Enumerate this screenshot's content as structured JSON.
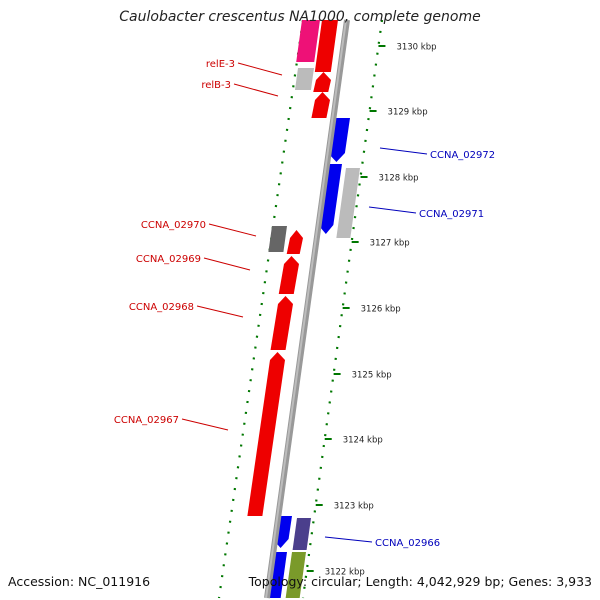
{
  "title": "Caulobacter crescentus NA1000, complete genome",
  "accession": "Accession: NC_011916",
  "summary": "Topology: circular; Length: 4,042,929 bp; Genes: 3,933",
  "colors": {
    "red": "#ee0000",
    "blue": "#0000ee",
    "magenta": "#ee1177",
    "gray": "#bbbbbb",
    "darkgray": "#666666",
    "purple": "#4b3f8c",
    "olive": "#7a9a2a",
    "tick": "#007700",
    "backbone": "#888888",
    "label_red": "#cc0000",
    "label_blue": "#0000bb"
  },
  "ticks": [
    "3130 kbp",
    "3129 kbp",
    "3128 kbp",
    "3127 kbp",
    "3126 kbp",
    "3125 kbp",
    "3124 kbp",
    "3123 kbp",
    "3122 kbp"
  ],
  "genes_left": [
    {
      "label": "relE-3",
      "color": "red"
    },
    {
      "label": "relB-3",
      "color": "red"
    },
    {
      "label": "CCNA_02970",
      "color": "red"
    },
    {
      "label": "CCNA_02969",
      "color": "red"
    },
    {
      "label": "CCNA_02968",
      "color": "red"
    },
    {
      "label": "CCNA_02967",
      "color": "red"
    }
  ],
  "genes_right": [
    {
      "label": "CCNA_02972",
      "color": "blue"
    },
    {
      "label": "CCNA_02971",
      "color": "blue"
    },
    {
      "label": "CCNA_02966",
      "color": "blue"
    }
  ]
}
